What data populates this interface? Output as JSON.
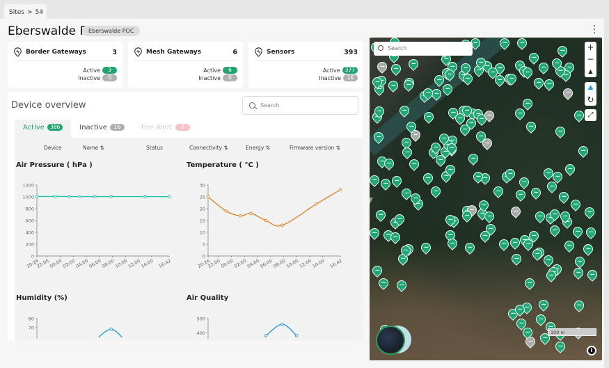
{
  "breadcrumb": {
    "root": "Sites",
    "sep": ">",
    "current": "54"
  },
  "header": {
    "title": "Eberswalde P",
    "tag": "Eberswalde POC"
  },
  "cards": [
    {
      "name": "Border Gateways",
      "total": "3",
      "active_label": "Active",
      "active": "3",
      "inactive_label": "Inactive",
      "inactive": "0",
      "icon": "border-gateway-icon"
    },
    {
      "name": "Mesh Gateways",
      "total": "6",
      "active_label": "Active",
      "active": "6",
      "inactive_label": "Inactive",
      "inactive": "0",
      "icon": "wifi-pin-icon"
    },
    {
      "name": "Sensors",
      "total": "393",
      "active_label": "Active",
      "active": "377",
      "inactive_label": "Inactive",
      "inactive": "16",
      "icon": "sensor-pin-icon"
    }
  ],
  "overview": {
    "title": "Device overview",
    "search_placeholder": "Search",
    "tabs": [
      {
        "label": "Active",
        "count": "386"
      },
      {
        "label": "Inactive",
        "count": "16"
      },
      {
        "label": "Fire Alert",
        "count": "0"
      }
    ],
    "columns": [
      "Device",
      "Name",
      "Status",
      "Connectivity",
      "Energy",
      "Firmware version"
    ],
    "sort_glyph": "⇅"
  },
  "colors": {
    "accent": "#23a36f",
    "pressure": "#20c4b0",
    "temperature": "#e0862c",
    "humidity": "#2a9fd6",
    "air_quality": "#2a9fd6"
  },
  "chart_data": [
    {
      "type": "line",
      "title": "Air Pressure (  hPa )",
      "x_ticks": [
        "20:26",
        "22:00",
        "00:00",
        "02:00",
        "04:00",
        "06:00",
        "08:00",
        "10:00",
        "12:00",
        "14:00",
        "16:42"
      ],
      "x": [
        "20:26",
        "23:12",
        "01:24",
        "03:00",
        "05:18",
        "07:48",
        "13:02",
        "16:42"
      ],
      "values": [
        1005,
        1008,
        1005,
        1005,
        1005,
        1005,
        1005,
        1003
      ],
      "ylim": [
        0,
        1200
      ],
      "y_ticks": [
        0,
        200,
        400,
        600,
        800,
        1000,
        1200
      ]
    },
    {
      "type": "line",
      "title": "Temperature ( °C )",
      "x_ticks": [
        "20:26",
        "22:00",
        "00:00",
        "02:00",
        "04:00",
        "06:00",
        "08:00",
        "10:00",
        "12:00",
        "14:00",
        "16:42"
      ],
      "x": [
        "20:26",
        "23:12",
        "01:24",
        "03:00",
        "05:18",
        "07:48",
        "13:02",
        "16:42"
      ],
      "values": [
        25,
        19,
        17,
        18,
        15,
        13,
        22,
        28
      ],
      "ylim": [
        0,
        30
      ],
      "y_ticks": [
        0,
        5,
        10,
        15,
        20,
        25,
        30
      ]
    },
    {
      "type": "line",
      "title": "Humidity (%)",
      "x": [
        "05:18",
        "07:48",
        "10:00"
      ],
      "values": [
        55,
        68,
        55
      ],
      "ylim": [
        0,
        80
      ],
      "y_ticks": [
        70,
        80
      ]
    },
    {
      "type": "line",
      "title": "Air Quality",
      "x": [
        "05:18",
        "07:48",
        "10:00"
      ],
      "values": [
        380,
        460,
        380
      ],
      "ylim": [
        0,
        500
      ],
      "y_ticks": [
        400,
        500
      ]
    }
  ],
  "map": {
    "search_placeholder": "Search",
    "zoom_in": "+",
    "zoom_out": "−",
    "scale": "100 m",
    "info": "i"
  }
}
